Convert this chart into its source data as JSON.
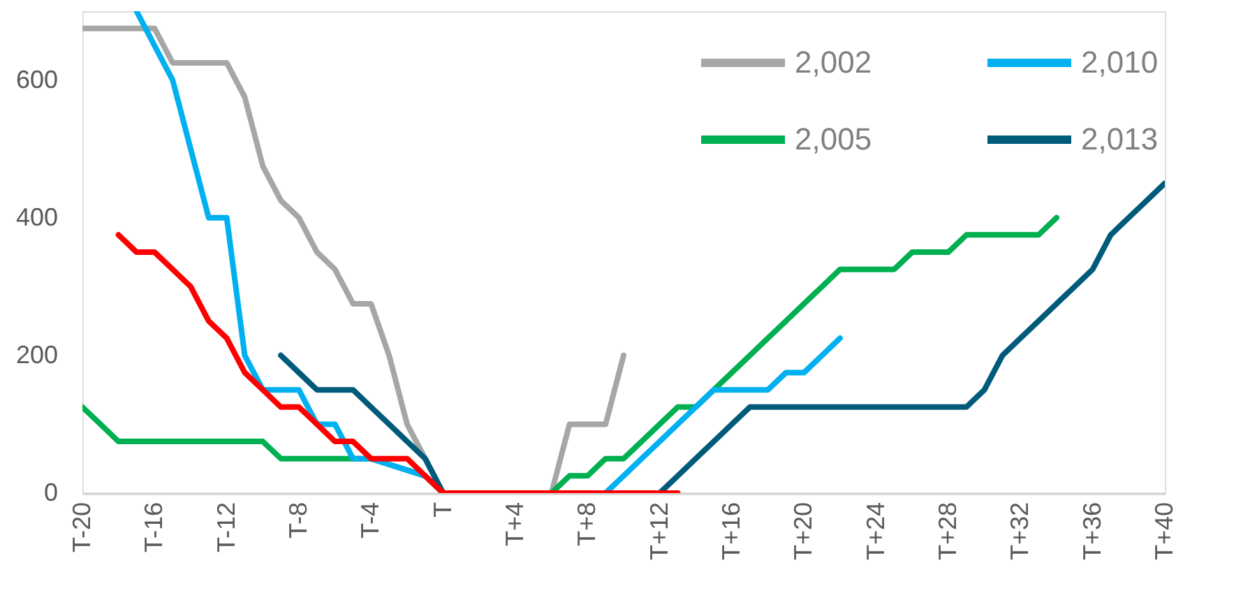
{
  "chart_data": {
    "type": "line",
    "categories": [
      "T-20",
      null,
      null,
      null,
      "T-16",
      null,
      null,
      null,
      "T-12",
      null,
      null,
      null,
      "T-8",
      null,
      null,
      null,
      "T-4",
      null,
      null,
      null,
      "T",
      null,
      null,
      null,
      "T+4",
      null,
      null,
      null,
      "T+8",
      null,
      null,
      null,
      "T+12",
      null,
      null,
      null,
      "T+16",
      null,
      null,
      null,
      "T+20",
      null,
      null,
      null,
      "T+24",
      null,
      null,
      null,
      "T+28",
      null,
      null,
      null,
      "T+32",
      null,
      null,
      null,
      "T+36",
      null,
      null,
      null,
      "T+40"
    ],
    "series": [
      {
        "name": "2,002",
        "color": "#a6a6a6",
        "values": [
          675,
          675,
          675,
          675,
          675,
          625,
          625,
          625,
          625,
          575,
          475,
          425,
          400,
          350,
          325,
          275,
          275,
          200,
          100,
          50,
          0,
          0,
          0,
          0,
          0,
          0,
          0,
          100,
          100,
          100,
          200,
          null,
          null,
          null,
          null,
          null,
          null,
          null,
          null,
          null,
          null,
          null,
          null,
          null,
          null,
          null,
          null,
          null,
          null,
          null,
          null,
          null,
          null,
          null,
          null,
          null,
          null,
          null,
          null,
          null,
          null
        ]
      },
      {
        "name": "2,005",
        "color": "#00b050",
        "values": [
          125,
          100,
          75,
          75,
          75,
          75,
          75,
          75,
          75,
          75,
          75,
          50,
          50,
          50,
          50,
          50,
          50,
          null,
          null,
          25,
          0,
          0,
          0,
          0,
          0,
          0,
          0,
          25,
          25,
          50,
          50,
          75,
          100,
          125,
          125,
          150,
          175,
          200,
          225,
          250,
          275,
          300,
          325,
          325,
          325,
          325,
          350,
          350,
          350,
          375,
          375,
          375,
          375,
          375,
          400,
          null,
          null,
          null,
          null,
          null,
          null
        ]
      },
      {
        "name": "2,010",
        "color": "#00b0f0",
        "values": [
          null,
          null,
          null,
          700,
          650,
          600,
          500,
          400,
          400,
          200,
          150,
          150,
          150,
          100,
          100,
          50,
          50,
          null,
          null,
          25,
          0,
          0,
          0,
          0,
          0,
          0,
          0,
          0,
          0,
          0,
          25,
          50,
          75,
          100,
          125,
          150,
          150,
          150,
          150,
          175,
          175,
          200,
          225,
          null,
          null,
          null,
          null,
          null,
          null,
          null,
          null,
          null,
          null,
          null,
          null,
          null,
          null,
          null,
          null,
          null,
          null
        ]
      },
      {
        "name": "2,013",
        "color": "#005a7a",
        "values": [
          null,
          null,
          null,
          null,
          null,
          null,
          null,
          null,
          null,
          null,
          null,
          200,
          175,
          150,
          150,
          150,
          125,
          100,
          75,
          50,
          0,
          0,
          0,
          0,
          0,
          0,
          0,
          0,
          0,
          0,
          0,
          0,
          0,
          25,
          50,
          75,
          100,
          125,
          125,
          125,
          125,
          125,
          125,
          125,
          125,
          125,
          125,
          125,
          125,
          125,
          150,
          200,
          225,
          250,
          275,
          300,
          325,
          375,
          400,
          425,
          450
        ]
      },
      {
        "color": "#ff0000",
        "values": [
          null,
          null,
          375,
          350,
          350,
          325,
          300,
          250,
          225,
          175,
          150,
          125,
          125,
          100,
          75,
          75,
          50,
          50,
          50,
          25,
          0,
          0,
          0,
          0,
          0,
          0,
          0,
          0,
          0,
          0,
          0,
          0,
          0,
          0,
          null,
          null,
          null,
          null,
          null,
          null,
          null,
          null,
          null,
          null,
          null,
          null,
          null,
          null,
          null,
          null,
          null,
          null,
          null,
          null,
          null,
          null,
          null,
          null,
          null,
          null,
          null
        ]
      }
    ],
    "ylim": [
      0,
      700
    ],
    "yticks": [
      0,
      200,
      400,
      600
    ],
    "grid": false,
    "legend": "top right",
    "marker": "none",
    "line_style": "solid"
  }
}
